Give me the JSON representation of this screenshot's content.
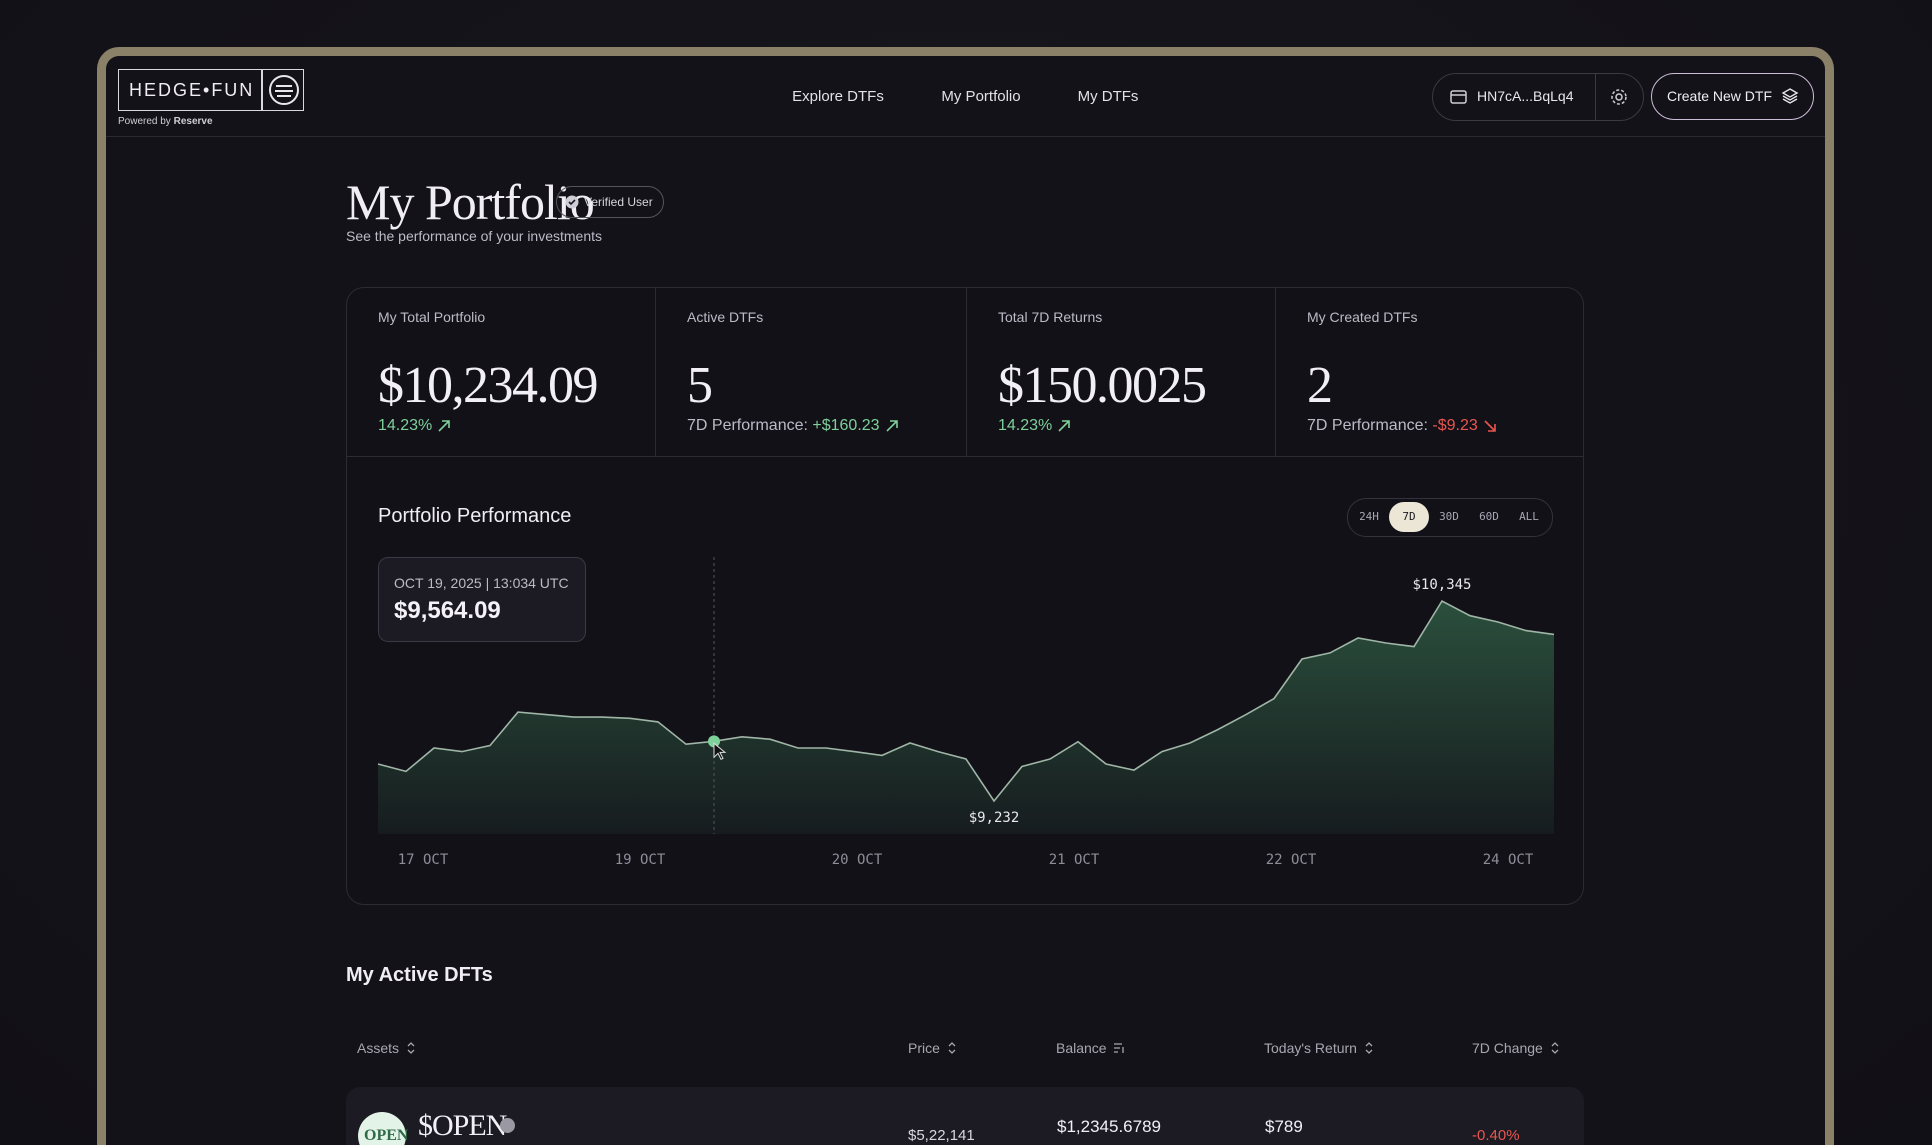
{
  "header": {
    "logo": "HEDGE•FUN",
    "powered_by": "Powered by",
    "powered_brand": "Reserve",
    "nav": [
      "Explore DTFs",
      "My Portfolio",
      "My DTFs"
    ],
    "wallet": "HN7cA...BqLq4",
    "create_button": "Create New DTF"
  },
  "page": {
    "title": "My Portfolio",
    "badge": "Verified User",
    "subtitle": "See the performance of your investments"
  },
  "stats": [
    {
      "label": "My Total Portfolio",
      "value": "$10,234.09",
      "change": "14.23%",
      "direction": "up"
    },
    {
      "label": "Active DTFs",
      "value": "5",
      "change_label": "7D Performance:",
      "change": "+$160.23",
      "direction": "up"
    },
    {
      "label": "Total 7D Returns",
      "value": "$150.0025",
      "change": "14.23%",
      "direction": "up"
    },
    {
      "label": "My Created DTFs",
      "value": "2",
      "change_label": "7D Performance:",
      "change": "-$9.23",
      "direction": "down"
    }
  ],
  "performance": {
    "title": "Portfolio Performance",
    "ranges": [
      "24H",
      "7D",
      "30D",
      "60D",
      "ALL"
    ],
    "active_range": "7D",
    "tooltip": {
      "date": "OCT 19, 2025 | 13:034 UTC",
      "value": "$9,564.09"
    },
    "values": [
      9438,
      9397,
      9527,
      9507,
      9541,
      9727,
      9713,
      9699,
      9699,
      9692,
      9672,
      9548,
      9564,
      9589,
      9576,
      9527,
      9527,
      9507,
      9486,
      9555,
      9507,
      9466,
      9232,
      9424,
      9466,
      9562,
      9438,
      9404,
      9507,
      9555,
      9630,
      9713,
      9802,
      10022,
      10056,
      10139,
      10111,
      10091,
      10345,
      10263,
      10228,
      10180,
      10159
    ],
    "max_label": "$10,345",
    "min_label": "$9,232",
    "x_labels": [
      "17 OCT",
      "19 OCT",
      "20 OCT",
      "21 OCT",
      "22 OCT",
      "24 OCT"
    ],
    "line_color": "#9fb5a6",
    "fill_color": "#2f5a43"
  },
  "active_dtfs": {
    "title": "My Active DFTs",
    "columns": [
      "Assets",
      "Price",
      "Balance",
      "Today's Return",
      "7D Change"
    ],
    "rows": [
      {
        "logo_text": "OPEN",
        "asset": "$OPEN",
        "price": "$5,22,141",
        "balance": "$1,2345.6789",
        "today_return": "$789",
        "change_7d": "-0.40%"
      }
    ]
  }
}
